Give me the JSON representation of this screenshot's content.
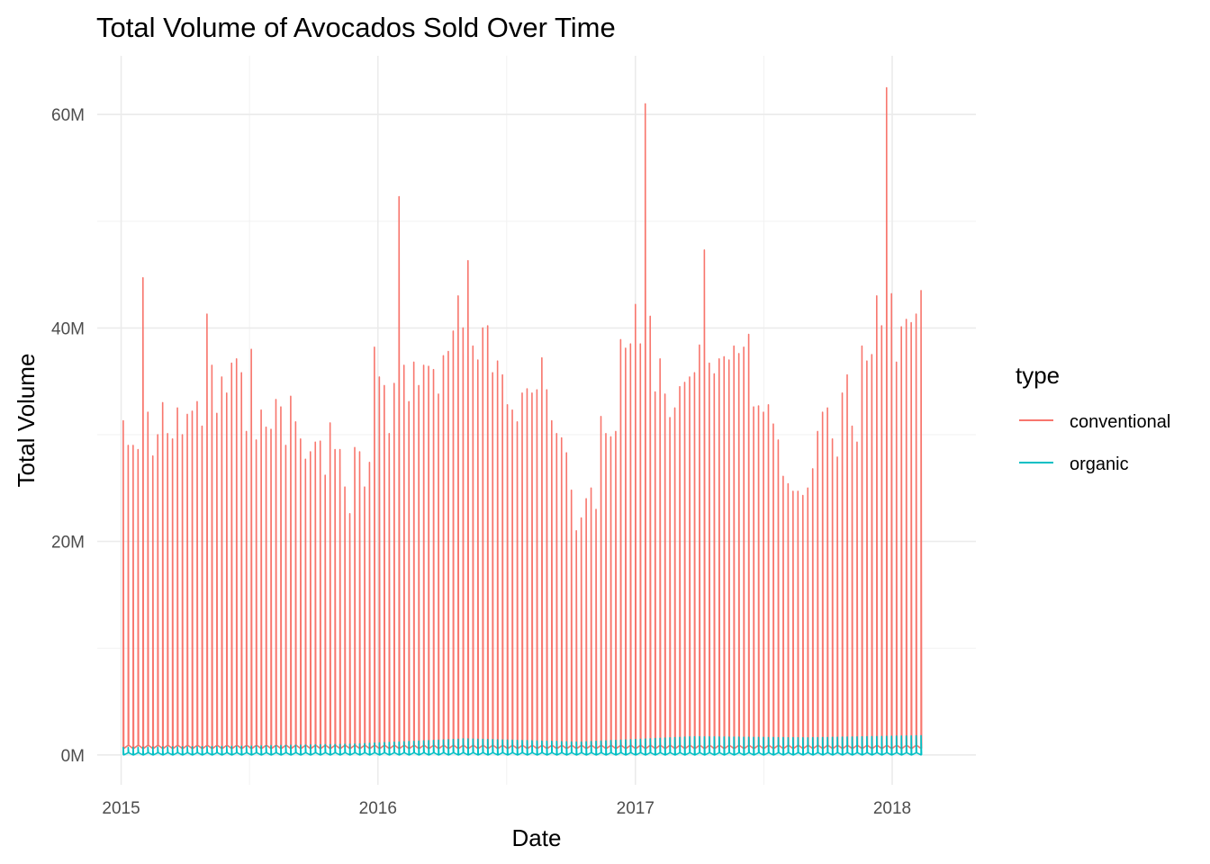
{
  "chart_data": {
    "type": "line",
    "title": "Total Volume of Avocados Sold Over Time",
    "xlabel": "Date",
    "ylabel": "Total Volume",
    "x_tick_labels": [
      "2015",
      "2016",
      "2017",
      "2018"
    ],
    "y_tick_labels": [
      "0M",
      "20M",
      "40M",
      "60M"
    ],
    "x_ticks": [
      "2015-01-01",
      "2016-01-01",
      "2017-01-01",
      "2018-01-01"
    ],
    "y_ticks": [
      0,
      20000000,
      40000000,
      60000000
    ],
    "x_range": [
      "2014-11-28",
      "2018-04-30"
    ],
    "y_range": [
      -2800000,
      65500000
    ],
    "grid": true,
    "legend": {
      "title": "type",
      "position": "right",
      "entries": [
        {
          "label": "conventional",
          "color": "#F8766D"
        },
        {
          "label": "organic",
          "color": "#00BFC4"
        }
      ]
    },
    "series": [
      {
        "name": "conventional",
        "color": "#F8766D",
        "start_date": "2015-01-04",
        "interval_days": 7,
        "peak_values": [
          31.3,
          29.0,
          29.0,
          28.6,
          44.7,
          32.1,
          28.0,
          30.0,
          33.0,
          30.1,
          29.6,
          32.5,
          30.0,
          31.9,
          32.2,
          33.1,
          30.8,
          41.3,
          36.5,
          32.0,
          35.4,
          33.9,
          36.7,
          37.1,
          35.8,
          30.3,
          38.0,
          29.5,
          32.3,
          30.7,
          30.5,
          33.3,
          32.6,
          29.0,
          33.6,
          31.2,
          29.6,
          27.7,
          28.4,
          29.3,
          29.4,
          26.2,
          31.1,
          28.6,
          28.6,
          25.1,
          22.6,
          28.8,
          28.4,
          25.1,
          27.4,
          38.2,
          35.4,
          34.6,
          30.1,
          34.8,
          52.3,
          36.5,
          33.1,
          36.8,
          34.6,
          36.5,
          36.4,
          36.1,
          33.8,
          37.4,
          37.8,
          39.7,
          43.0,
          40.0,
          46.3,
          38.3,
          37.0,
          40.0,
          40.2,
          35.8,
          36.9,
          35.6,
          32.8,
          32.3,
          31.2,
          33.9,
          34.3,
          33.9,
          34.2,
          37.2,
          34.2,
          31.3,
          30.1,
          29.7,
          28.3,
          24.8,
          21.0,
          22.2,
          24.0,
          25.0,
          23.0,
          31.7,
          30.1,
          29.8,
          30.3,
          38.9,
          38.1,
          38.5,
          42.2,
          38.5,
          61.0,
          41.1,
          34.0,
          37.1,
          33.8,
          31.6,
          32.5,
          34.5,
          34.9,
          35.4,
          35.8,
          38.4,
          47.3,
          36.7,
          35.7,
          37.1,
          37.3,
          37.0,
          38.3,
          37.6,
          38.2,
          39.4,
          32.6,
          32.7,
          32.1,
          32.8,
          31.0,
          29.5,
          26.1,
          25.4,
          24.7,
          24.7,
          24.3,
          25.0,
          26.8,
          30.3,
          32.1,
          32.5,
          29.6,
          27.9,
          33.9,
          35.6,
          30.8,
          29.3,
          38.3,
          36.9,
          37.5,
          43.0,
          40.2,
          62.5,
          43.2,
          36.8,
          40.1,
          40.8,
          40.5,
          41.3,
          43.5
        ],
        "baseline_values": [
          0.6,
          0.9
        ]
      },
      {
        "name": "organic",
        "color": "#00BFC4",
        "start_date": "2015-01-04",
        "interval_days": 7,
        "peak_values": [
          0.7,
          0.8,
          1.0,
          1.5,
          1.2,
          1.7,
          1.6,
          1.8
        ],
        "baseline_values": [
          0.0,
          0.2
        ]
      }
    ]
  }
}
